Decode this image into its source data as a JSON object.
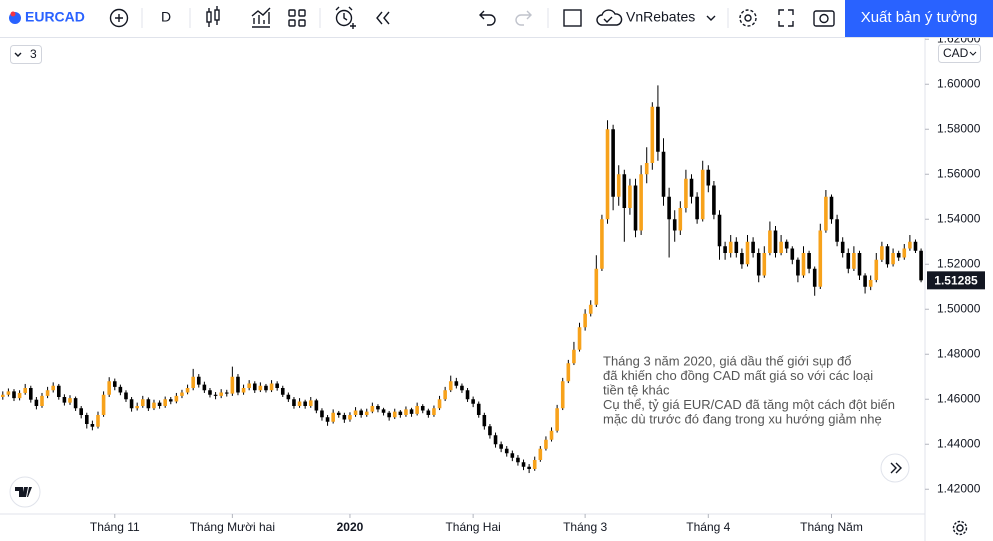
{
  "toolbar": {
    "symbol": "EURCAD",
    "interval": "D",
    "account": "VnRebates",
    "publish": "Xuất bản ý tưởng"
  },
  "chart_data": {
    "type": "candlestick",
    "legend_count": "3",
    "currency": "CAD",
    "annotation": [
      "Tháng 3 năm 2020, giá dầu thế giới sụp đổ",
      "đã khiến cho đồng CAD mất giá so với các loại",
      "tiền tệ khác",
      "Cụ thể, tỷ giá EUR/CAD đã tăng một cách đột biến",
      "mặc dù trước đó đang trong xu hướng giảm nhẹ"
    ],
    "up_color": "#f7a21b",
    "down_color": "#000000",
    "grid": false,
    "xlim": [
      -0.5,
      164.7
    ],
    "ylim": [
      1.409,
      1.621
    ],
    "xticks": [
      {
        "value": 20,
        "label": "Tháng 11"
      },
      {
        "value": 41,
        "label": "Tháng Mười hai"
      },
      {
        "value": 62,
        "label": "2020"
      },
      {
        "value": 84,
        "label": "Tháng Hai"
      },
      {
        "value": 104,
        "label": "Tháng 3"
      },
      {
        "value": 126,
        "label": "Tháng 4"
      },
      {
        "value": 148,
        "label": "Tháng Năm"
      }
    ],
    "yticks": [
      {
        "value": 1.62,
        "label": "1.62000"
      },
      {
        "value": 1.6,
        "label": "1.60000"
      },
      {
        "value": 1.58,
        "label": "1.58000"
      },
      {
        "value": 1.56,
        "label": "1.56000"
      },
      {
        "value": 1.54,
        "label": "1.54000"
      },
      {
        "value": 1.52,
        "label": "1.52000"
      },
      {
        "value": 1.5,
        "label": "1.50000"
      },
      {
        "value": 1.48,
        "label": "1.48000"
      },
      {
        "value": 1.46,
        "label": "1.46000"
      },
      {
        "value": 1.44,
        "label": "1.44000"
      },
      {
        "value": 1.42,
        "label": "1.42000"
      }
    ],
    "ohlc": [
      [
        1.461,
        1.4635,
        1.4598,
        1.462
      ],
      [
        1.462,
        1.4648,
        1.4612,
        1.4635
      ],
      [
        1.4635,
        1.4645,
        1.4592,
        1.4605
      ],
      [
        1.4605,
        1.464,
        1.4595,
        1.4628
      ],
      [
        1.4628,
        1.4668,
        1.462,
        1.465
      ],
      [
        1.465,
        1.466,
        1.4585,
        1.4598
      ],
      [
        1.4598,
        1.461,
        1.4555,
        1.457
      ],
      [
        1.457,
        1.4628,
        1.4562,
        1.4615
      ],
      [
        1.4615,
        1.4655,
        1.4605,
        1.464
      ],
      [
        1.464,
        1.4675,
        1.463,
        1.466
      ],
      [
        1.466,
        1.4668,
        1.4598,
        1.461
      ],
      [
        1.461,
        1.4622,
        1.4572,
        1.4585
      ],
      [
        1.4585,
        1.4618,
        1.4575,
        1.4605
      ],
      [
        1.4605,
        1.4612,
        1.4548,
        1.456
      ],
      [
        1.456,
        1.457,
        1.4515,
        1.453
      ],
      [
        1.453,
        1.454,
        1.447,
        1.449
      ],
      [
        1.449,
        1.4505,
        1.4462,
        1.4478
      ],
      [
        1.4478,
        1.4545,
        1.447,
        1.453
      ],
      [
        1.453,
        1.4635,
        1.4522,
        1.462
      ],
      [
        1.462,
        1.4698,
        1.461,
        1.468
      ],
      [
        1.468,
        1.4692,
        1.464,
        1.4655
      ],
      [
        1.4655,
        1.4665,
        1.4618,
        1.463
      ],
      [
        1.463,
        1.464,
        1.4588,
        1.46
      ],
      [
        1.46,
        1.461,
        1.4545,
        1.456
      ],
      [
        1.456,
        1.4585,
        1.455,
        1.457
      ],
      [
        1.457,
        1.4615,
        1.4562,
        1.46
      ],
      [
        1.46,
        1.4608,
        1.4548,
        1.456
      ],
      [
        1.456,
        1.4598,
        1.4552,
        1.4585
      ],
      [
        1.4585,
        1.4595,
        1.4558,
        1.457
      ],
      [
        1.457,
        1.4612,
        1.4562,
        1.46
      ],
      [
        1.46,
        1.461,
        1.4578,
        1.459
      ],
      [
        1.459,
        1.4628,
        1.4582,
        1.4615
      ],
      [
        1.4615,
        1.4642,
        1.4605,
        1.463
      ],
      [
        1.463,
        1.4665,
        1.4622,
        1.465
      ],
      [
        1.465,
        1.4735,
        1.464,
        1.47
      ],
      [
        1.47,
        1.4712,
        1.4652,
        1.4665
      ],
      [
        1.4665,
        1.4678,
        1.4628,
        1.464
      ],
      [
        1.464,
        1.465,
        1.4608,
        1.462
      ],
      [
        1.462,
        1.4632,
        1.46,
        1.4615
      ],
      [
        1.4615,
        1.4645,
        1.4605,
        1.463
      ],
      [
        1.463,
        1.4642,
        1.4612,
        1.4625
      ],
      [
        1.4625,
        1.4745,
        1.4615,
        1.47
      ],
      [
        1.47,
        1.4712,
        1.4618,
        1.463
      ],
      [
        1.463,
        1.4665,
        1.462,
        1.465
      ],
      [
        1.465,
        1.4685,
        1.464,
        1.467
      ],
      [
        1.467,
        1.468,
        1.4628,
        1.464
      ],
      [
        1.464,
        1.4675,
        1.4632,
        1.466
      ],
      [
        1.466,
        1.4668,
        1.463,
        1.464
      ],
      [
        1.464,
        1.4685,
        1.4632,
        1.467
      ],
      [
        1.467,
        1.468,
        1.4638,
        1.465
      ],
      [
        1.465,
        1.466,
        1.461,
        1.462
      ],
      [
        1.462,
        1.463,
        1.4588,
        1.46
      ],
      [
        1.46,
        1.461,
        1.4558,
        1.457
      ],
      [
        1.457,
        1.4605,
        1.4562,
        1.459
      ],
      [
        1.459,
        1.4598,
        1.4558,
        1.457
      ],
      [
        1.457,
        1.461,
        1.4562,
        1.4595
      ],
      [
        1.4595,
        1.4602,
        1.4538,
        1.455
      ],
      [
        1.455,
        1.456,
        1.4505,
        1.452
      ],
      [
        1.452,
        1.453,
        1.4482,
        1.45
      ],
      [
        1.45,
        1.4555,
        1.4492,
        1.454
      ],
      [
        1.454,
        1.4548,
        1.4518,
        1.453
      ],
      [
        1.453,
        1.454,
        1.4495,
        1.451
      ],
      [
        1.451,
        1.4542,
        1.45,
        1.453
      ],
      [
        1.453,
        1.4565,
        1.4522,
        1.455
      ],
      [
        1.455,
        1.4558,
        1.4518,
        1.453
      ],
      [
        1.453,
        1.4558,
        1.4522,
        1.4545
      ],
      [
        1.4545,
        1.4585,
        1.4538,
        1.457
      ],
      [
        1.457,
        1.4578,
        1.4542,
        1.4555
      ],
      [
        1.4555,
        1.4562,
        1.4528,
        1.454
      ],
      [
        1.454,
        1.4548,
        1.4505,
        1.452
      ],
      [
        1.452,
        1.4558,
        1.4512,
        1.4545
      ],
      [
        1.4545,
        1.4552,
        1.4518,
        1.453
      ],
      [
        1.453,
        1.4568,
        1.4522,
        1.4555
      ],
      [
        1.4555,
        1.4562,
        1.4522,
        1.4535
      ],
      [
        1.4535,
        1.4585,
        1.4528,
        1.457
      ],
      [
        1.457,
        1.4578,
        1.4538,
        1.455
      ],
      [
        1.455,
        1.4558,
        1.4518,
        1.453
      ],
      [
        1.453,
        1.4572,
        1.4522,
        1.456
      ],
      [
        1.456,
        1.4615,
        1.4552,
        1.46
      ],
      [
        1.46,
        1.4655,
        1.4592,
        1.464
      ],
      [
        1.464,
        1.4705,
        1.4632,
        1.468
      ],
      [
        1.468,
        1.4695,
        1.4648,
        1.466
      ],
      [
        1.466,
        1.467,
        1.4628,
        1.464
      ],
      [
        1.464,
        1.465,
        1.4588,
        1.46
      ],
      [
        1.46,
        1.4612,
        1.4565,
        1.458
      ],
      [
        1.458,
        1.459,
        1.4518,
        1.453
      ],
      [
        1.453,
        1.454,
        1.4465,
        1.448
      ],
      [
        1.448,
        1.449,
        1.4425,
        1.444
      ],
      [
        1.444,
        1.4452,
        1.4385,
        1.44
      ],
      [
        1.44,
        1.4412,
        1.4365,
        1.438
      ],
      [
        1.438,
        1.4392,
        1.4345,
        1.436
      ],
      [
        1.436,
        1.4372,
        1.4325,
        1.434
      ],
      [
        1.434,
        1.4352,
        1.4305,
        1.432
      ],
      [
        1.432,
        1.4332,
        1.4285,
        1.43
      ],
      [
        1.43,
        1.4312,
        1.4272,
        1.429
      ],
      [
        1.429,
        1.4345,
        1.4282,
        1.433
      ],
      [
        1.433,
        1.4392,
        1.4322,
        1.438
      ],
      [
        1.438,
        1.4435,
        1.4372,
        1.442
      ],
      [
        1.442,
        1.4475,
        1.4412,
        1.446
      ],
      [
        1.446,
        1.4575,
        1.4452,
        1.456
      ],
      [
        1.456,
        1.4695,
        1.4552,
        1.468
      ],
      [
        1.468,
        1.4775,
        1.4672,
        1.476
      ],
      [
        1.476,
        1.4855,
        1.4752,
        1.482
      ],
      [
        1.482,
        1.494,
        1.4812,
        1.492
      ],
      [
        1.492,
        1.5,
        1.4905,
        1.498
      ],
      [
        1.498,
        1.504,
        1.4968,
        1.502
      ],
      [
        1.502,
        1.524,
        1.501,
        1.518
      ],
      [
        1.518,
        1.542,
        1.517,
        1.54
      ],
      [
        1.54,
        1.584,
        1.538,
        1.58
      ],
      [
        1.58,
        1.582,
        1.544,
        1.55
      ],
      [
        1.55,
        1.564,
        1.546,
        1.56
      ],
      [
        1.56,
        1.562,
        1.53,
        1.545
      ],
      [
        1.545,
        1.558,
        1.542,
        1.555
      ],
      [
        1.555,
        1.558,
        1.532,
        1.535
      ],
      [
        1.535,
        1.564,
        1.533,
        1.56
      ],
      [
        1.56,
        1.572,
        1.556,
        1.565
      ],
      [
        1.565,
        1.592,
        1.562,
        1.59
      ],
      [
        1.59,
        1.5995,
        1.566,
        1.57
      ],
      [
        1.57,
        1.576,
        1.546,
        1.55
      ],
      [
        1.55,
        1.554,
        1.523,
        1.54
      ],
      [
        1.54,
        1.544,
        1.53,
        1.535
      ],
      [
        1.535,
        1.548,
        1.533,
        1.545
      ],
      [
        1.545,
        1.562,
        1.543,
        1.558
      ],
      [
        1.558,
        1.56,
        1.547,
        1.55
      ],
      [
        1.55,
        1.552,
        1.538,
        1.54
      ],
      [
        1.54,
        1.566,
        1.539,
        1.562
      ],
      [
        1.562,
        1.564,
        1.552,
        1.555
      ],
      [
        1.555,
        1.557,
        1.54,
        1.542
      ],
      [
        1.542,
        1.544,
        1.522,
        1.528
      ],
      [
        1.528,
        1.53,
        1.522,
        1.525
      ],
      [
        1.525,
        1.533,
        1.523,
        1.53
      ],
      [
        1.53,
        1.532,
        1.523,
        1.525
      ],
      [
        1.525,
        1.527,
        1.518,
        1.52
      ],
      [
        1.52,
        1.533,
        1.519,
        1.53
      ],
      [
        1.53,
        1.532,
        1.523,
        1.525
      ],
      [
        1.525,
        1.527,
        1.512,
        1.515
      ],
      [
        1.515,
        1.528,
        1.514,
        1.525
      ],
      [
        1.525,
        1.539,
        1.524,
        1.535
      ],
      [
        1.535,
        1.537,
        1.523,
        1.525
      ],
      [
        1.525,
        1.533,
        1.524,
        1.53
      ],
      [
        1.53,
        1.531,
        1.525,
        1.527
      ],
      [
        1.527,
        1.528,
        1.52,
        1.522
      ],
      [
        1.522,
        1.523,
        1.512,
        1.515
      ],
      [
        1.515,
        1.528,
        1.514,
        1.525
      ],
      [
        1.525,
        1.526,
        1.516,
        1.518
      ],
      [
        1.518,
        1.519,
        1.506,
        1.51
      ],
      [
        1.51,
        1.538,
        1.509,
        1.535
      ],
      [
        1.535,
        1.553,
        1.534,
        1.55
      ],
      [
        1.55,
        1.551,
        1.538,
        1.54
      ],
      [
        1.54,
        1.542,
        1.528,
        1.53
      ],
      [
        1.53,
        1.532,
        1.523,
        1.525
      ],
      [
        1.525,
        1.527,
        1.516,
        1.518
      ],
      [
        1.518,
        1.528,
        1.517,
        1.525
      ],
      [
        1.525,
        1.526,
        1.513,
        1.515
      ],
      [
        1.515,
        1.516,
        1.507,
        1.51
      ],
      [
        1.51,
        1.515,
        1.5085,
        1.513
      ],
      [
        1.513,
        1.525,
        1.512,
        1.522
      ],
      [
        1.522,
        1.53,
        1.521,
        1.528
      ],
      [
        1.528,
        1.529,
        1.5185,
        1.52
      ],
      [
        1.52,
        1.527,
        1.519,
        1.525
      ],
      [
        1.525,
        1.526,
        1.5215,
        1.523
      ],
      [
        1.523,
        1.529,
        1.522,
        1.527
      ],
      [
        1.527,
        1.533,
        1.526,
        1.53
      ],
      [
        1.53,
        1.531,
        1.525,
        1.526
      ],
      [
        1.526,
        1.527,
        1.512,
        1.51285
      ]
    ]
  }
}
